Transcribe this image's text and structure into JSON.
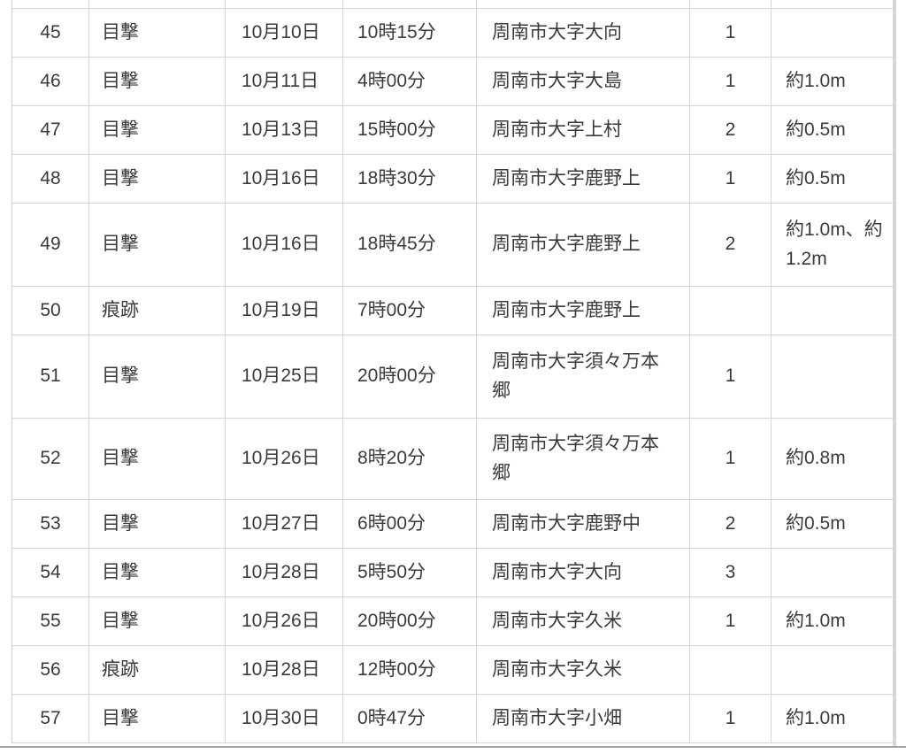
{
  "colors": {
    "text": "#3a3a3a",
    "cell_border": "#d4d4d4",
    "scrollbar": "#d5d5d5",
    "bottom_edge": "#a3a3a3"
  },
  "table": {
    "rows": [
      {
        "no": "45",
        "type": "目撃",
        "date": "10月10日",
        "time": "10時15分",
        "location": "周南市大字大向",
        "count": "1",
        "size": ""
      },
      {
        "no": "46",
        "type": "目撃",
        "date": "10月11日",
        "time": "4時00分",
        "location": "周南市大字大島",
        "count": "1",
        "size": "約1.0m"
      },
      {
        "no": "47",
        "type": "目撃",
        "date": "10月13日",
        "time": "15時00分",
        "location": "周南市大字上村",
        "count": "2",
        "size": "約0.5m"
      },
      {
        "no": "48",
        "type": "目撃",
        "date": "10月16日",
        "time": "18時30分",
        "location": "周南市大字鹿野上",
        "count": "1",
        "size": "約0.5m"
      },
      {
        "no": "49",
        "type": "目撃",
        "date": "10月16日",
        "time": "18時45分",
        "location": "周南市大字鹿野上",
        "count": "2",
        "size": "約1.0m、約1.2m"
      },
      {
        "no": "50",
        "type": "痕跡",
        "date": "10月19日",
        "time": "7時00分",
        "location": "周南市大字鹿野上",
        "count": "",
        "size": ""
      },
      {
        "no": "51",
        "type": "目撃",
        "date": "10月25日",
        "time": "20時00分",
        "location": "周南市大字須々万本郷",
        "count": "1",
        "size": ""
      },
      {
        "no": "52",
        "type": "目撃",
        "date": "10月26日",
        "time": "8時20分",
        "location": "周南市大字須々万本郷",
        "count": "1",
        "size": "約0.8m"
      },
      {
        "no": "53",
        "type": "目撃",
        "date": "10月27日",
        "time": "6時00分",
        "location": "周南市大字鹿野中",
        "count": "2",
        "size": "約0.5m"
      },
      {
        "no": "54",
        "type": "目撃",
        "date": "10月28日",
        "time": "5時50分",
        "location": "周南市大字大向",
        "count": "3",
        "size": ""
      },
      {
        "no": "55",
        "type": "目撃",
        "date": "10月26日",
        "time": "20時00分",
        "location": "周南市大字久米",
        "count": "1",
        "size": "約1.0m"
      },
      {
        "no": "56",
        "type": "痕跡",
        "date": "10月28日",
        "time": "12時00分",
        "location": "周南市大字久米",
        "count": "",
        "size": ""
      },
      {
        "no": "57",
        "type": "目撃",
        "date": "10月30日",
        "time": "0時47分",
        "location": "周南市大字小畑",
        "count": "1",
        "size": "約1.0m"
      }
    ]
  }
}
